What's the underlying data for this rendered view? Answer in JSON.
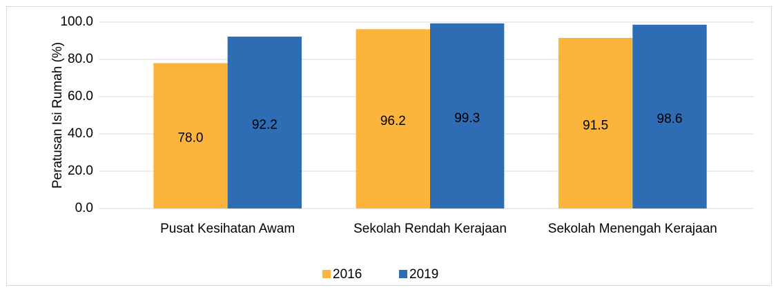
{
  "chart_data": {
    "type": "bar",
    "y_label": "Peratusan Isi Rumah (%)",
    "categories": [
      "Pusat Kesihatan Awam",
      "Sekolah Rendah Kerajaan",
      "Sekolah Menengah Kerajaan"
    ],
    "series": [
      {
        "name": "2016",
        "color": "#fbb53c",
        "values": [
          78.0,
          96.2,
          91.5
        ],
        "value_labels": [
          "78.0",
          "96.2",
          "91.5"
        ]
      },
      {
        "name": "2019",
        "color": "#2e6db4",
        "values": [
          92.2,
          99.3,
          98.6
        ],
        "value_labels": [
          "92.2",
          "99.3",
          "98.6"
        ]
      }
    ],
    "ylim": [
      0,
      100
    ],
    "yticks": [
      {
        "value": 0,
        "label": "0.0"
      },
      {
        "value": 20,
        "label": "20.0"
      },
      {
        "value": 40,
        "label": "40.0"
      },
      {
        "value": 60,
        "label": "60.0"
      },
      {
        "value": 80,
        "label": "80.0"
      },
      {
        "value": 100,
        "label": "100.0"
      }
    ],
    "grid": true,
    "legend": "bottom"
  }
}
